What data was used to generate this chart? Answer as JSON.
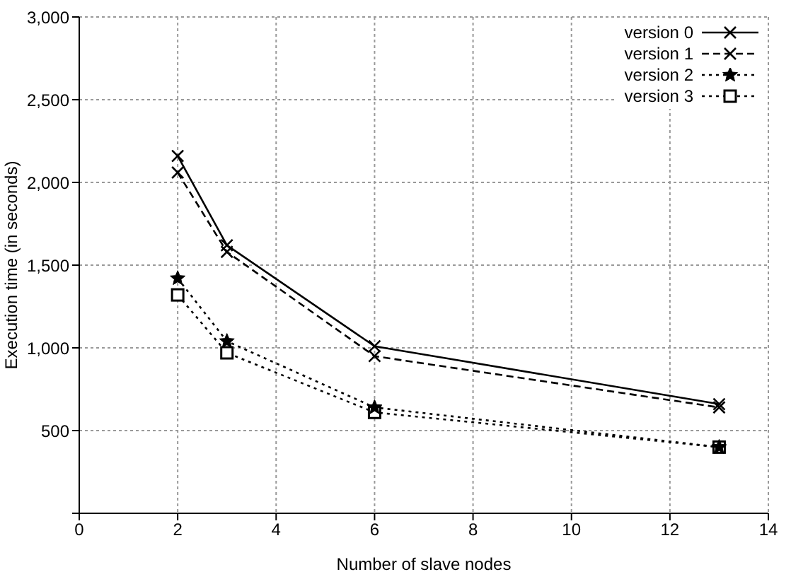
{
  "chart_data": {
    "type": "line",
    "xlabel": "Number of slave nodes",
    "ylabel": "Execution time (in seconds)",
    "x": [
      2,
      3,
      6,
      13
    ],
    "series": [
      {
        "name": "version 0",
        "color": "#000000",
        "values": [
          2160,
          1620,
          1010,
          660
        ],
        "marker": "cross",
        "line_style": "solid"
      },
      {
        "name": "version 1",
        "color": "#000000",
        "values": [
          2060,
          1580,
          950,
          640
        ],
        "marker": "cross",
        "line_style": "dashed"
      },
      {
        "name": "version 2",
        "color": "#000000",
        "values": [
          1420,
          1040,
          640,
          400
        ],
        "marker": "star",
        "line_style": "dotted"
      },
      {
        "name": "version 3",
        "color": "#000000",
        "values": [
          1320,
          970,
          610,
          400
        ],
        "marker": "square",
        "line_style": "dotted"
      }
    ],
    "xlim": [
      0,
      14
    ],
    "xticks": [
      0,
      2,
      4,
      6,
      8,
      10,
      12,
      14
    ],
    "ylim": [
      0,
      3000
    ],
    "yticks": [
      {
        "value": 0,
        "label": null
      },
      {
        "value": 500,
        "label": "500"
      },
      {
        "value": 1000,
        "label": "1,000"
      },
      {
        "value": 1500,
        "label": "1,500"
      },
      {
        "value": 2000,
        "label": "2,000"
      },
      {
        "value": 2500,
        "label": "2,500"
      },
      {
        "value": 3000,
        "label": "3,000"
      }
    ],
    "grid": true,
    "legend": "top right"
  }
}
